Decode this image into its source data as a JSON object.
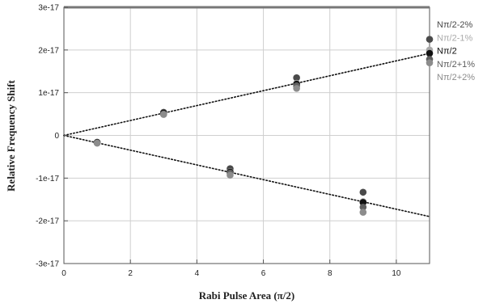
{
  "chart_data": {
    "type": "scatter",
    "title": "",
    "xlabel": "Rabi Pulse Area (π/2)",
    "ylabel": "Relative Frequency Shift",
    "xlim": [
      0,
      11
    ],
    "ylim": [
      -3e-17,
      3e-17
    ],
    "x_ticks": [
      0,
      2,
      4,
      6,
      8,
      10
    ],
    "x_tick_labels": [
      "0",
      "2",
      "4",
      "6",
      "8",
      "10"
    ],
    "y_ticks": [
      3e-17,
      2e-17,
      1e-17,
      0,
      -1e-17,
      -2e-17,
      -3e-17
    ],
    "y_tick_labels": [
      "3e-17",
      "2e-17",
      "1e-17",
      "0",
      "-1e-17",
      "-2e-17",
      "-3e-17"
    ],
    "grid": true,
    "legend_position": "right",
    "series": [
      {
        "name": "Nπ/2-2%",
        "color": "#4a4a4a",
        "points": [
          [
            1,
            -1.6e-18
          ],
          [
            3,
            5.4e-18
          ],
          [
            5,
            -7.8e-18
          ],
          [
            7,
            1.35e-17
          ],
          [
            9,
            -1.33e-17
          ],
          [
            11,
            2.25e-17
          ]
        ]
      },
      {
        "name": "Nπ/2-1%",
        "color": "#aaaaaa",
        "points": [
          [
            1,
            -1.7e-18
          ],
          [
            3,
            5.1e-18
          ],
          [
            5,
            -8.5e-18
          ],
          [
            7,
            1.22e-17
          ],
          [
            9,
            -1.55e-17
          ],
          [
            11,
            2e-17
          ]
        ]
      },
      {
        "name": "Nπ/2",
        "color": "#111111",
        "points": [
          [
            1,
            -1.7e-18
          ],
          [
            3,
            5.2e-18
          ],
          [
            5,
            -8.6e-18
          ],
          [
            7,
            1.2e-17
          ],
          [
            9,
            -1.57e-17
          ],
          [
            11,
            1.92e-17
          ]
        ]
      },
      {
        "name": "Nπ/2+1%",
        "color": "#5e5e5e",
        "points": [
          [
            1,
            -1.8e-18
          ],
          [
            3,
            5e-18
          ],
          [
            5,
            -8.8e-18
          ],
          [
            7,
            1.16e-17
          ],
          [
            9,
            -1.68e-17
          ],
          [
            11,
            1.78e-17
          ]
        ]
      },
      {
        "name": "Nπ/2+2%",
        "color": "#8c8c8c",
        "points": [
          [
            1,
            -1.8e-18
          ],
          [
            3,
            4.9e-18
          ],
          [
            5,
            -9.3e-18
          ],
          [
            7,
            1.1e-17
          ],
          [
            9,
            -1.8e-17
          ],
          [
            11,
            1.7e-17
          ]
        ]
      }
    ],
    "fit_lines": [
      {
        "points": [
          [
            0,
            0
          ],
          [
            11,
            1.92e-17
          ]
        ],
        "style": "dotted"
      },
      {
        "points": [
          [
            0,
            0
          ],
          [
            11,
            -1.9e-17
          ]
        ],
        "style": "dotted"
      }
    ]
  }
}
